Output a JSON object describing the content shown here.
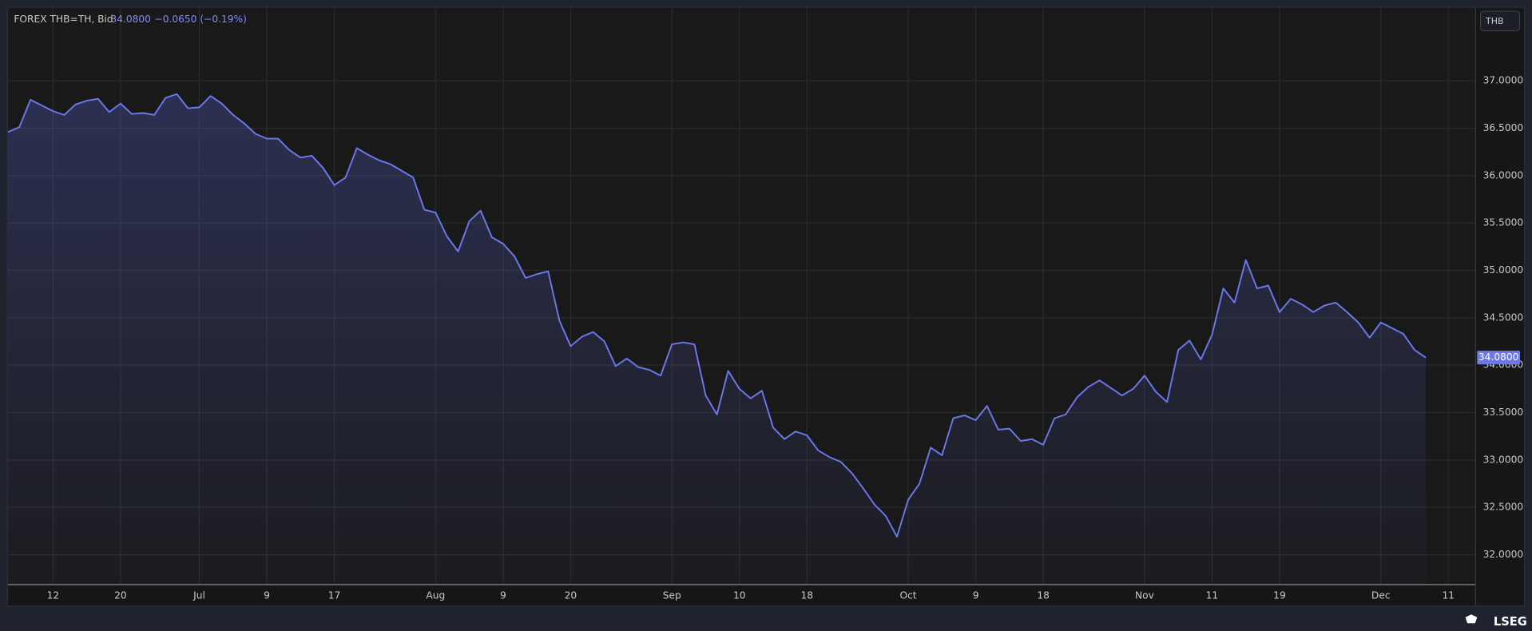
{
  "chart_data": {
    "type": "line",
    "title": "FOREX THB=TH, Bid",
    "last_label": "34.0800",
    "change_label": "−0.0650 (−0.19%)",
    "currency": "THB",
    "brand": "LSEG",
    "color": "#6a78ec",
    "grid": true,
    "ylim": [
      31.69,
      37.77
    ],
    "yticks": [
      {
        "value": 32,
        "label": "32.0000"
      },
      {
        "value": 32.5,
        "label": "32.5000"
      },
      {
        "value": 33,
        "label": "33.0000"
      },
      {
        "value": 33.5,
        "label": "33.5000"
      },
      {
        "value": 34,
        "label": "34.0000"
      },
      {
        "value": 34.5,
        "label": "34.5000"
      },
      {
        "value": 35,
        "label": "35.0000"
      },
      {
        "value": 35.5,
        "label": "35.5000"
      },
      {
        "value": 36,
        "label": "36.0000"
      },
      {
        "value": 36.5,
        "label": "36.5000"
      },
      {
        "value": 37,
        "label": "37.0000"
      }
    ],
    "categories": [
      null,
      null,
      null,
      null,
      "12",
      null,
      null,
      null,
      null,
      null,
      "20",
      null,
      null,
      null,
      null,
      null,
      null,
      "Jul",
      null,
      null,
      null,
      null,
      null,
      "9",
      null,
      null,
      null,
      null,
      null,
      "17",
      null,
      null,
      null,
      null,
      null,
      null,
      null,
      null,
      "Aug",
      null,
      null,
      null,
      null,
      null,
      "9",
      null,
      null,
      null,
      null,
      null,
      "20",
      null,
      null,
      null,
      null,
      null,
      null,
      null,
      null,
      "Sep",
      null,
      null,
      null,
      null,
      null,
      "10",
      null,
      null,
      null,
      null,
      null,
      "18",
      null,
      null,
      null,
      null,
      null,
      null,
      null,
      null,
      "Oct",
      null,
      null,
      null,
      null,
      null,
      "9",
      null,
      null,
      null,
      null,
      null,
      "18",
      null,
      null,
      null,
      null,
      null,
      null,
      null,
      null,
      "Nov",
      null,
      null,
      null,
      null,
      null,
      "11",
      null,
      null,
      null,
      null,
      null,
      "19",
      null,
      null,
      null,
      null,
      null,
      null,
      null,
      null,
      "Dec",
      null,
      null,
      null,
      null,
      null,
      "11"
    ],
    "values": [
      36.46,
      36.51,
      36.8,
      36.74,
      36.68,
      36.64,
      36.75,
      36.79,
      36.81,
      36.67,
      36.76,
      36.65,
      36.66,
      36.64,
      36.82,
      36.86,
      36.71,
      36.72,
      36.84,
      36.76,
      36.64,
      36.55,
      36.44,
      36.39,
      36.39,
      36.27,
      36.19,
      36.21,
      36.08,
      35.9,
      35.98,
      36.29,
      36.22,
      36.16,
      36.12,
      36.05,
      35.98,
      35.64,
      35.61,
      35.36,
      35.2,
      35.52,
      35.63,
      35.35,
      35.28,
      35.15,
      34.92,
      34.96,
      34.99,
      34.47,
      34.2,
      34.3,
      34.35,
      34.25,
      33.99,
      34.07,
      33.98,
      33.95,
      33.89,
      34.22,
      34.24,
      34.22,
      33.68,
      33.48,
      33.94,
      33.75,
      33.65,
      33.73,
      33.34,
      33.22,
      33.3,
      33.26,
      33.1,
      33.03,
      32.98,
      32.86,
      32.7,
      32.53,
      32.41,
      32.19,
      32.58,
      32.75,
      33.13,
      33.05,
      33.44,
      33.47,
      33.42,
      33.57,
      33.32,
      33.33,
      33.2,
      33.22,
      33.16,
      33.44,
      33.48,
      33.66,
      33.77,
      33.84,
      33.76,
      33.68,
      33.75,
      33.89,
      33.72,
      33.61,
      34.16,
      34.26,
      34.06,
      34.32,
      34.81,
      34.66,
      35.11,
      34.81,
      34.84,
      34.56,
      34.7,
      34.64,
      34.56,
      34.63,
      34.66,
      34.56,
      34.45,
      34.29,
      34.45,
      34.39,
      34.33,
      34.16,
      34.08,
      null,
      null
    ]
  }
}
